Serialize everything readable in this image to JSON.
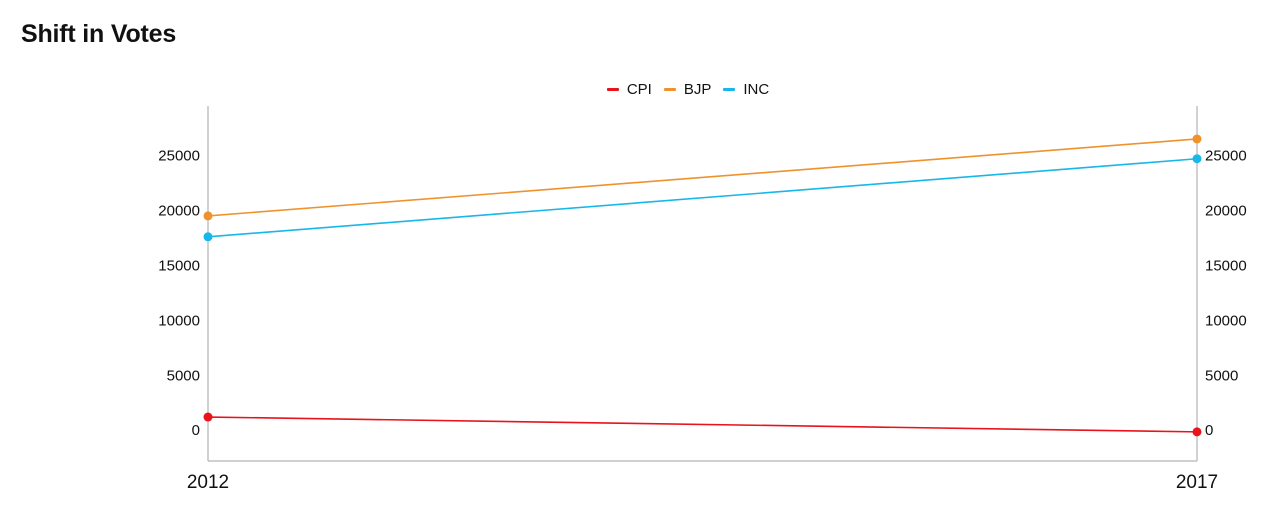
{
  "chart_data": {
    "type": "line",
    "title": "Shift in Votes",
    "xlabel": "",
    "ylabel": "",
    "categories": [
      "2012",
      "2017"
    ],
    "series": [
      {
        "name": "CPI",
        "color": "#e8131b",
        "values": [
          1200,
          -150
        ]
      },
      {
        "name": "BJP",
        "color": "#f0922b",
        "values": [
          19500,
          26500
        ]
      },
      {
        "name": "INC",
        "color": "#17b7ea",
        "values": [
          17600,
          24700
        ]
      }
    ],
    "ylim": [
      -2800,
      29500
    ],
    "yticks": [
      "0",
      "5000",
      "10000",
      "15000",
      "20000",
      "25000"
    ],
    "grid": false,
    "legend_position": "top-center",
    "secondary_y_axis": true
  }
}
